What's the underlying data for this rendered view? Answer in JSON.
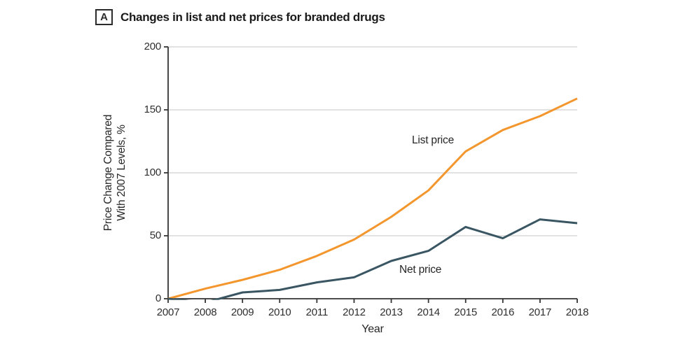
{
  "figure": {
    "panel_label": "A",
    "title": "Changes in list and net prices for branded drugs"
  },
  "chart_data": {
    "type": "line",
    "title": "Changes in list and net prices for branded drugs",
    "xlabel": "Year",
    "ylabel": "Price Change Compared With 2007 Levels, %",
    "ylabel_lines": [
      "Price Change Compared",
      "With 2007 Levels, %"
    ],
    "x": [
      2007,
      2008,
      2009,
      2010,
      2011,
      2012,
      2013,
      2014,
      2015,
      2016,
      2017,
      2018
    ],
    "series": [
      {
        "name": "List price",
        "color": "#F3962D",
        "values": [
          0,
          8,
          15,
          23,
          34,
          47,
          65,
          86,
          117,
          134,
          145,
          159
        ]
      },
      {
        "name": "Net price",
        "color": "#3A5663",
        "values": [
          0,
          -3,
          5,
          7,
          13,
          17,
          30,
          38,
          57,
          48,
          63,
          60
        ]
      }
    ],
    "xlim": [
      2007,
      2018
    ],
    "ylim": [
      0,
      200
    ],
    "yticks": [
      0,
      50,
      100,
      150,
      200
    ],
    "grid": true,
    "legend": "inline-annotations",
    "colors": {
      "grid": "#D9D9D9",
      "axis": "#333333",
      "text": "#262626"
    }
  }
}
